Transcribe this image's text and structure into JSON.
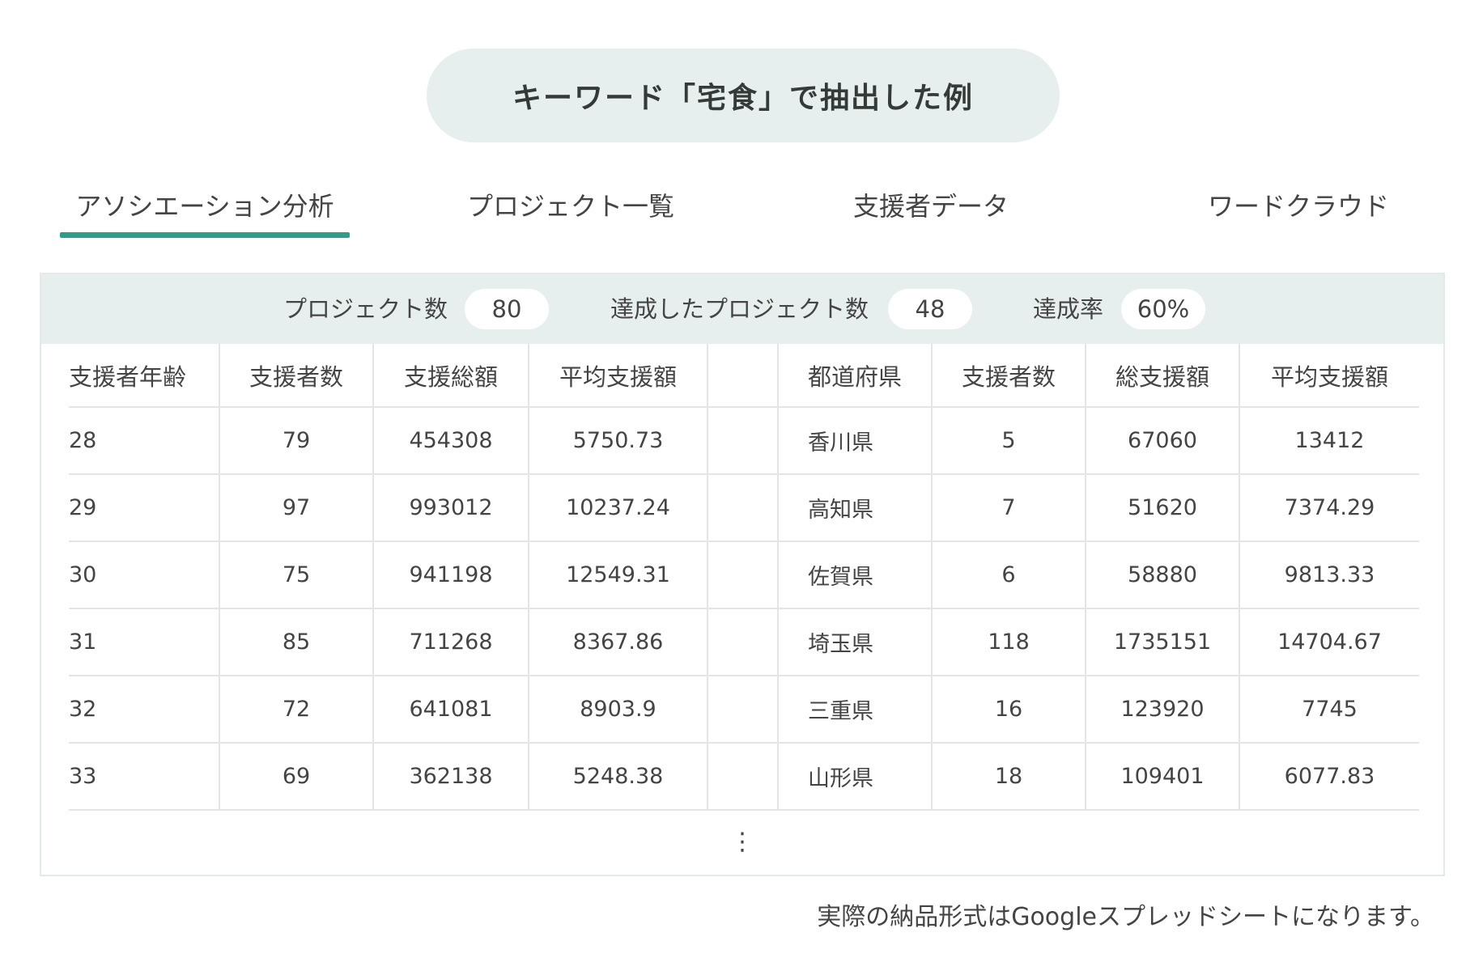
{
  "keyword_pill": {
    "text": "キーワード「宅食」で抽出した例"
  },
  "tabs": [
    {
      "label": "アソシエーション分析",
      "active": true
    },
    {
      "label": "プロジェクト一覧",
      "active": false
    },
    {
      "label": "支援者データ",
      "active": false
    },
    {
      "label": "ワードクラウド",
      "active": false
    }
  ],
  "summary": {
    "projects_label": "プロジェクト数",
    "projects_value": "80",
    "achieved_label": "達成したプロジェクト数",
    "achieved_value": "48",
    "rate_label": "達成率",
    "rate_value": "60%"
  },
  "age_table": {
    "headers": [
      "支援者年齢",
      "支援者数",
      "支援総額",
      "平均支援額"
    ],
    "rows": [
      [
        "28",
        "79",
        "454308",
        "5750.73"
      ],
      [
        "29",
        "97",
        "993012",
        "10237.24"
      ],
      [
        "30",
        "75",
        "941198",
        "12549.31"
      ],
      [
        "31",
        "85",
        "711268",
        "8367.86"
      ],
      [
        "32",
        "72",
        "641081",
        "8903.9"
      ],
      [
        "33",
        "69",
        "362138",
        "5248.38"
      ]
    ]
  },
  "pref_table": {
    "headers": [
      "都道府県",
      "支援者数",
      "総支援額",
      "平均支援額"
    ],
    "rows": [
      [
        "香川県",
        "5",
        "67060",
        "13412"
      ],
      [
        "高知県",
        "7",
        "51620",
        "7374.29"
      ],
      [
        "佐賀県",
        "6",
        "58880",
        "9813.33"
      ],
      [
        "埼玉県",
        "118",
        "1735151",
        "14704.67"
      ],
      [
        "三重県",
        "16",
        "123920",
        "7745"
      ],
      [
        "山形県",
        "18",
        "109401",
        "6077.83"
      ]
    ]
  },
  "ellipsis": "⋮",
  "footnote": "実際の納品形式はGoogleスプレッドシートになります。",
  "colors": {
    "accent": "#2e9e88",
    "pill_bg": "#e6efed"
  }
}
